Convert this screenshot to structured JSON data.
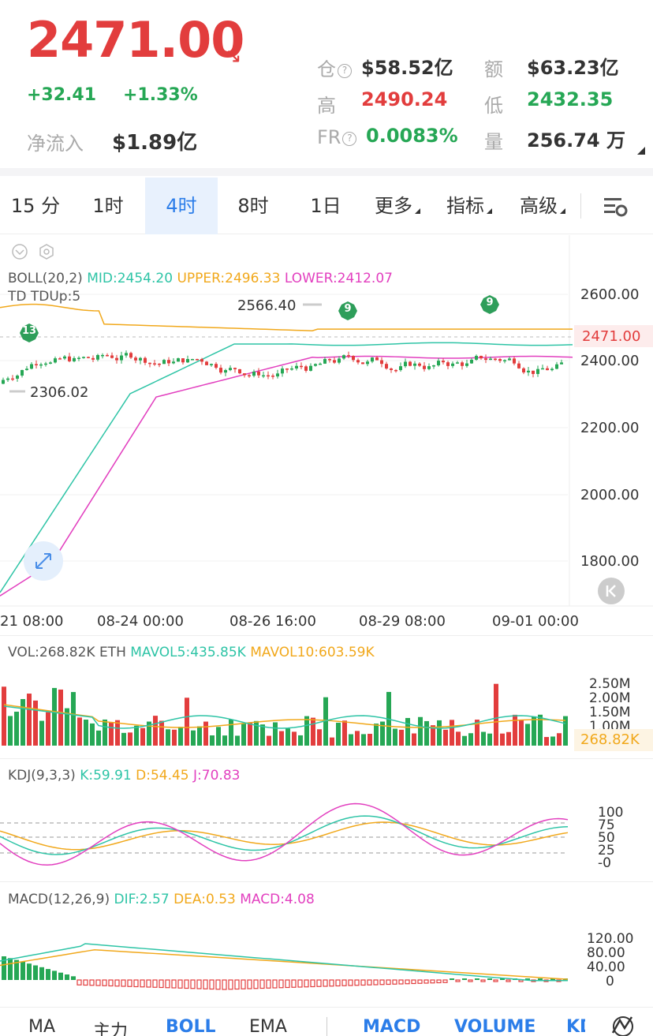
{
  "header": {
    "price": "2471.00",
    "change": "+32.41",
    "change_pct": "+1.33%",
    "netflow_label": "净流入",
    "netflow_value": "$1.89亿",
    "stats": [
      {
        "label": "仓",
        "value": "$58.52亿",
        "info": true
      },
      {
        "label": "额",
        "value": "$63.23亿"
      },
      {
        "label": "高",
        "value": "2490.24"
      },
      {
        "label": "低",
        "value": "2432.35"
      },
      {
        "label": "FR",
        "value": "0.0083%",
        "info": true
      },
      {
        "label": "量",
        "value": "256.74 万"
      }
    ]
  },
  "tabs": [
    "15 分",
    "1时",
    "4时",
    "8时",
    "1日",
    "更多",
    "指标",
    "高级"
  ],
  "active_tab": "4时",
  "main_chart": {
    "boll_label": "BOLL(20,2)",
    "mid": "MID:2454.20",
    "upper": "UPPER:2496.33",
    "lower": "LOWER:2412.07",
    "td": "TD TDUp:5",
    "annot_high": "2566.40",
    "annot_low": "2306.02",
    "current": "2471.00",
    "y_ticks": [
      "2600.00",
      "2400.00",
      "2200.00",
      "2000.00",
      "1800.00"
    ],
    "x_ticks": [
      "21 08:00",
      "08-24 00:00",
      "08-26 16:00",
      "08-29 08:00",
      "09-01 00:00"
    ],
    "td_badges": [
      "13",
      "9",
      "9"
    ]
  },
  "vol": {
    "label": "VOL:268.82K ETH",
    "mavol5": "MAVOL5:435.85K",
    "mavol10": "MAVOL10:603.59K",
    "ticks": [
      "2.50M",
      "2.00M",
      "1.50M",
      "1.00M"
    ],
    "current": "268.82K"
  },
  "kdj": {
    "label": "KDJ(9,3,3)",
    "k": "K:59.91",
    "d": "D:54.45",
    "j": "J:70.83",
    "ticks": [
      "100",
      "75",
      "50",
      "25",
      "-0"
    ]
  },
  "macd": {
    "label": "MACD(12,26,9)",
    "dif": "DIF:2.57",
    "dea": "DEA:0.53",
    "macd": "MACD:4.08",
    "ticks": [
      "120.00",
      "80.00",
      "40.00",
      "0"
    ]
  },
  "bottom_nav": [
    "MA",
    "主力",
    "BOLL",
    "EMA",
    "MACD",
    "VOLUME",
    "KD"
  ],
  "colors": {
    "red": "#e23d3d",
    "green": "#26a755",
    "blue": "#2b7de9",
    "mid": "#2ec4a6",
    "upper": "#f1a81b",
    "lower": "#e23fbf"
  }
}
